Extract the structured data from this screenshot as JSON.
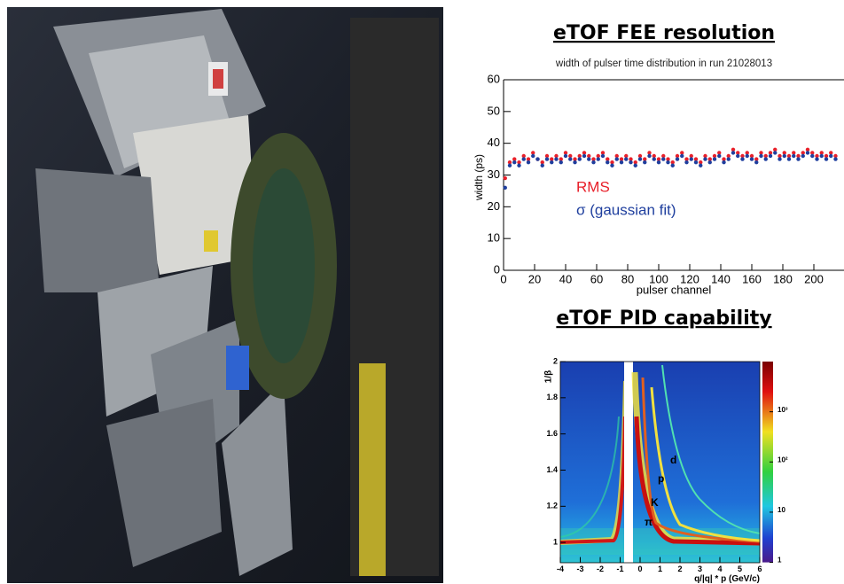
{
  "headings": [
    "eTOF FEE resolution",
    "eTOF PID capability"
  ],
  "chart_data": [
    {
      "type": "scatter",
      "title": "width of pulser time distribution in run 21028013",
      "x_label": "pulser channel",
      "y_label": "width (ps)",
      "xlim": [
        0,
        219
      ],
      "xticks": [
        0,
        20,
        40,
        60,
        80,
        100,
        120,
        140,
        160,
        180,
        200
      ],
      "ylim": [
        0,
        60
      ],
      "yticks": [
        0,
        10,
        20,
        30,
        40,
        50,
        60
      ],
      "x": [
        1,
        4,
        7,
        10,
        13,
        16,
        19,
        22,
        25,
        28,
        31,
        34,
        37,
        40,
        43,
        46,
        49,
        52,
        55,
        58,
        61,
        64,
        67,
        70,
        73,
        76,
        79,
        82,
        85,
        88,
        91,
        94,
        97,
        100,
        103,
        106,
        109,
        112,
        115,
        118,
        121,
        124,
        127,
        130,
        133,
        136,
        139,
        142,
        145,
        148,
        151,
        154,
        157,
        160,
        163,
        166,
        169,
        172,
        175,
        178,
        181,
        184,
        187,
        190,
        193,
        196,
        199,
        202,
        205,
        208,
        211,
        214
      ],
      "series": [
        {
          "name": "RMS",
          "color": "#e8202a",
          "values": [
            29,
            34,
            35,
            34,
            36,
            35,
            37,
            35,
            34,
            36,
            35,
            36,
            35,
            37,
            36,
            35,
            36,
            37,
            36,
            35,
            36,
            37,
            35,
            34,
            36,
            35,
            36,
            35,
            34,
            36,
            35,
            37,
            36,
            35,
            36,
            35,
            34,
            36,
            37,
            35,
            36,
            35,
            34,
            36,
            35,
            36,
            37,
            35,
            36,
            38,
            37,
            36,
            37,
            36,
            35,
            37,
            36,
            37,
            38,
            36,
            37,
            36,
            37,
            36,
            37,
            38,
            37,
            36,
            37,
            36,
            37,
            36
          ]
        },
        {
          "name": "σ (gaussian fit)",
          "color": "#1f3f9e",
          "values": [
            26,
            33,
            34,
            33,
            35,
            34,
            36,
            35,
            33,
            35,
            34,
            35,
            34,
            36,
            35,
            34,
            35,
            36,
            35,
            34,
            35,
            36,
            34,
            33,
            35,
            34,
            35,
            34,
            33,
            35,
            34,
            36,
            35,
            34,
            35,
            34,
            33,
            35,
            36,
            34,
            35,
            34,
            33,
            35,
            34,
            35,
            36,
            34,
            35,
            37,
            36,
            35,
            36,
            35,
            34,
            36,
            35,
            36,
            37,
            35,
            36,
            35,
            36,
            35,
            36,
            37,
            36,
            35,
            36,
            35,
            36,
            35
          ]
        }
      ]
    },
    {
      "type": "heatmap",
      "x_label": "q/|q| * p (GeV/c)",
      "y_label": "1/β",
      "xlim": [
        -4,
        6
      ],
      "xticks": [
        -4,
        -3,
        -2,
        -1,
        0,
        1,
        2,
        3,
        4,
        5,
        6
      ],
      "ylim": [
        0.89,
        2
      ],
      "yticks": [
        1,
        1.2,
        1.4,
        1.6,
        1.8,
        2
      ],
      "color_log": true,
      "clim": [
        1,
        10000
      ],
      "cticks": [
        1,
        10,
        {
          "value": 100,
          "label": "10²"
        },
        {
          "value": 1000,
          "label": "10³"
        }
      ],
      "annotations": [
        "d",
        "p",
        "K",
        "π"
      ]
    }
  ]
}
